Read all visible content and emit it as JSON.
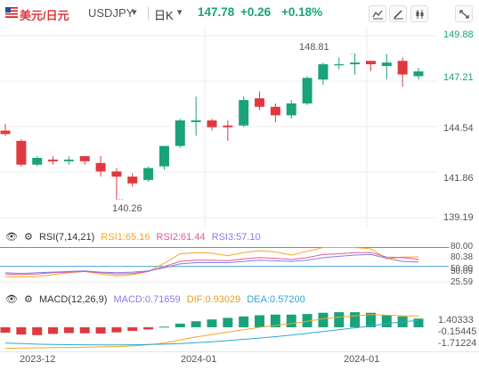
{
  "header": {
    "pair_cn": "美元/日元",
    "symbol": "USDJPY",
    "period": "日K",
    "price": "147.78",
    "change": "+0.26",
    "change_pct": "+0.18%",
    "accent_up": "#1aa37a",
    "accent_down": "#e0383e",
    "toolbar_icons": [
      "line-tool-icon",
      "draw-icon",
      "candle-style-icon",
      "fullscreen-icon"
    ]
  },
  "main_chart": {
    "y_labels": [
      "149.88",
      "147.21",
      "144.54",
      "141.86",
      "139.19"
    ],
    "high_annotation": "148.81",
    "low_annotation": "140.26"
  },
  "rsi": {
    "title": "RSI(7,14,21)",
    "rsi1": "RSI1:65.16",
    "rsi2": "RSI2:61.44",
    "rsi3": "RSI3:57.10",
    "y_labels": [
      "80.00",
      "80.38",
      "50.00",
      "50.09",
      "25.59"
    ]
  },
  "macd": {
    "title": "MACD(12,26,9)",
    "macd": "MACD:0.71659",
    "dif": "DIF:0.93029",
    "dea": "DEA:0.57200",
    "y_labels": [
      "1.40333",
      "-0.15445",
      "-1.71224"
    ]
  },
  "x_labels": [
    "2023-12",
    "2024-01",
    "2024-01"
  ],
  "chart_data": {
    "type": "candlestick",
    "candles": [
      {
        "o": 144.3,
        "h": 144.7,
        "l": 144.0,
        "c": 144.1
      },
      {
        "o": 143.7,
        "h": 143.8,
        "l": 142.2,
        "c": 142.3
      },
      {
        "o": 142.3,
        "h": 142.8,
        "l": 142.2,
        "c": 142.7
      },
      {
        "o": 142.6,
        "h": 142.8,
        "l": 142.3,
        "c": 142.5
      },
      {
        "o": 142.5,
        "h": 142.8,
        "l": 142.3,
        "c": 142.6
      },
      {
        "o": 142.8,
        "h": 142.8,
        "l": 142.3,
        "c": 142.5
      },
      {
        "o": 142.4,
        "h": 142.8,
        "l": 141.6,
        "c": 141.9
      },
      {
        "o": 141.9,
        "h": 142.1,
        "l": 140.26,
        "c": 141.6
      },
      {
        "o": 141.6,
        "h": 141.8,
        "l": 141.0,
        "c": 141.2
      },
      {
        "o": 141.4,
        "h": 142.2,
        "l": 141.3,
        "c": 142.1
      },
      {
        "o": 142.2,
        "h": 143.4,
        "l": 142.0,
        "c": 143.4
      },
      {
        "o": 143.4,
        "h": 145.0,
        "l": 143.3,
        "c": 144.9
      },
      {
        "o": 144.8,
        "h": 146.3,
        "l": 144.0,
        "c": 144.9
      },
      {
        "o": 144.9,
        "h": 145.0,
        "l": 144.3,
        "c": 144.5
      },
      {
        "o": 144.6,
        "h": 144.9,
        "l": 143.7,
        "c": 144.5
      },
      {
        "o": 144.6,
        "h": 146.3,
        "l": 144.5,
        "c": 146.1
      },
      {
        "o": 146.2,
        "h": 146.6,
        "l": 145.5,
        "c": 145.7
      },
      {
        "o": 145.7,
        "h": 145.9,
        "l": 144.8,
        "c": 145.2
      },
      {
        "o": 145.2,
        "h": 146.1,
        "l": 145.0,
        "c": 145.9
      },
      {
        "o": 145.9,
        "h": 147.5,
        "l": 145.8,
        "c": 147.4
      },
      {
        "o": 147.3,
        "h": 148.3,
        "l": 147.0,
        "c": 148.2
      },
      {
        "o": 148.2,
        "h": 148.6,
        "l": 147.9,
        "c": 148.2
      },
      {
        "o": 148.2,
        "h": 148.81,
        "l": 147.6,
        "c": 148.3
      },
      {
        "o": 148.4,
        "h": 148.4,
        "l": 147.8,
        "c": 148.2
      },
      {
        "o": 148.1,
        "h": 148.8,
        "l": 147.3,
        "c": 148.3
      },
      {
        "o": 148.4,
        "h": 148.6,
        "l": 146.9,
        "c": 147.6
      },
      {
        "o": 147.5,
        "h": 148.0,
        "l": 147.3,
        "c": 147.78
      }
    ],
    "ylim": [
      139.19,
      149.88
    ],
    "rsi_ylim": [
      20,
      85
    ],
    "rsi1": [
      34,
      33,
      34,
      37,
      40,
      42,
      38,
      35,
      37,
      42,
      55,
      70,
      72,
      71,
      67,
      72,
      75,
      73,
      68,
      74,
      80,
      80,
      80,
      78,
      62,
      65,
      65.16
    ],
    "rsi2": [
      38,
      37,
      38,
      40,
      41,
      42,
      40,
      38,
      39,
      42,
      50,
      58,
      60,
      60,
      59,
      62,
      64,
      63,
      61,
      64,
      69,
      70,
      72,
      72,
      65,
      64,
      61.44
    ],
    "rsi3": [
      40,
      39,
      40,
      41,
      42,
      43,
      41,
      40,
      41,
      43,
      48,
      54,
      56,
      56,
      56,
      58,
      60,
      59,
      58,
      60,
      64,
      66,
      68,
      69,
      63,
      58,
      57.1
    ],
    "macd_ylim": [
      -1.85,
      1.55
    ],
    "macd_hist": [
      -0.45,
      -0.6,
      -0.65,
      -0.55,
      -0.48,
      -0.5,
      -0.52,
      -0.42,
      -0.3,
      -0.18,
      0.05,
      0.3,
      0.5,
      0.65,
      0.78,
      0.9,
      1.0,
      1.05,
      1.05,
      1.1,
      1.2,
      1.25,
      1.25,
      1.2,
      1.0,
      0.9,
      0.71659
    ],
    "dif": [
      -1.75,
      -1.72,
      -1.7,
      -1.68,
      -1.67,
      -1.65,
      -1.63,
      -1.6,
      -1.55,
      -1.45,
      -1.3,
      -1.05,
      -0.8,
      -0.6,
      -0.4,
      -0.2,
      0.0,
      0.15,
      0.3,
      0.5,
      0.7,
      0.85,
      0.95,
      1.05,
      1.0,
      0.95,
      0.93029
    ],
    "dea": [
      -1.3,
      -1.35,
      -1.4,
      -1.42,
      -1.44,
      -1.45,
      -1.46,
      -1.46,
      -1.45,
      -1.43,
      -1.4,
      -1.35,
      -1.28,
      -1.2,
      -1.1,
      -1.0,
      -0.9,
      -0.78,
      -0.65,
      -0.5,
      -0.35,
      -0.2,
      -0.05,
      0.1,
      0.3,
      0.45,
      0.572
    ]
  }
}
